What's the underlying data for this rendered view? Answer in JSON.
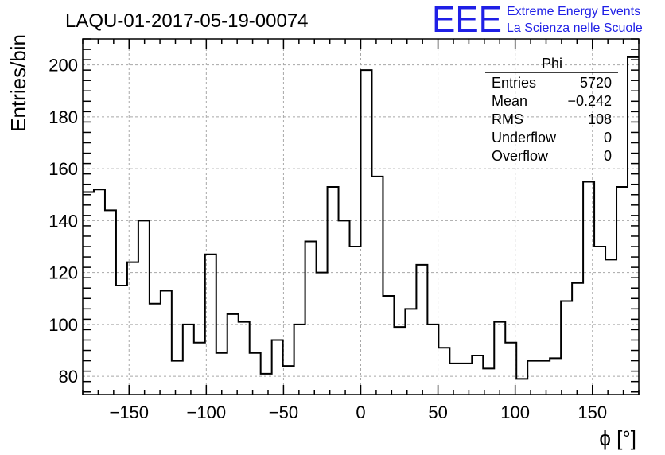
{
  "chart_data": {
    "type": "bar",
    "title": "LAQU-01-2017-05-19-00074",
    "xlabel": "ϕ [°]",
    "ylabel": "Entries/bin",
    "xlim": [
      -180,
      180
    ],
    "ylim": [
      73,
      210
    ],
    "grid": true,
    "x_ticks": [
      -150,
      -100,
      -50,
      0,
      50,
      100,
      150
    ],
    "y_ticks": [
      80,
      100,
      120,
      140,
      160,
      180,
      200
    ],
    "bin_edges_start": -180,
    "bin_width": 7.2,
    "values": [
      151,
      152,
      144,
      115,
      124,
      140,
      108,
      113,
      86,
      100,
      93,
      127,
      89,
      104,
      101,
      89,
      81,
      94,
      84,
      100,
      132,
      120,
      153,
      140,
      130,
      198,
      157,
      111,
      99,
      106,
      123,
      100,
      91,
      85,
      85,
      88,
      83,
      101,
      93,
      79,
      86,
      86,
      87,
      109,
      116,
      155,
      130,
      125,
      153,
      203
    ],
    "stats": {
      "name": "Phi",
      "rows": [
        {
          "label": "Entries",
          "value": "5720"
        },
        {
          "label": "Mean",
          "value": "−0.242"
        },
        {
          "label": "RMS",
          "value": "108"
        },
        {
          "label": "Underflow",
          "value": "0"
        },
        {
          "label": "Overflow",
          "value": "0"
        }
      ]
    }
  },
  "logo": {
    "mark": "EEE",
    "line1": "Extreme Energy Events",
    "line2": "La Scienza nelle Scuole",
    "color": "#1f1fe6"
  }
}
